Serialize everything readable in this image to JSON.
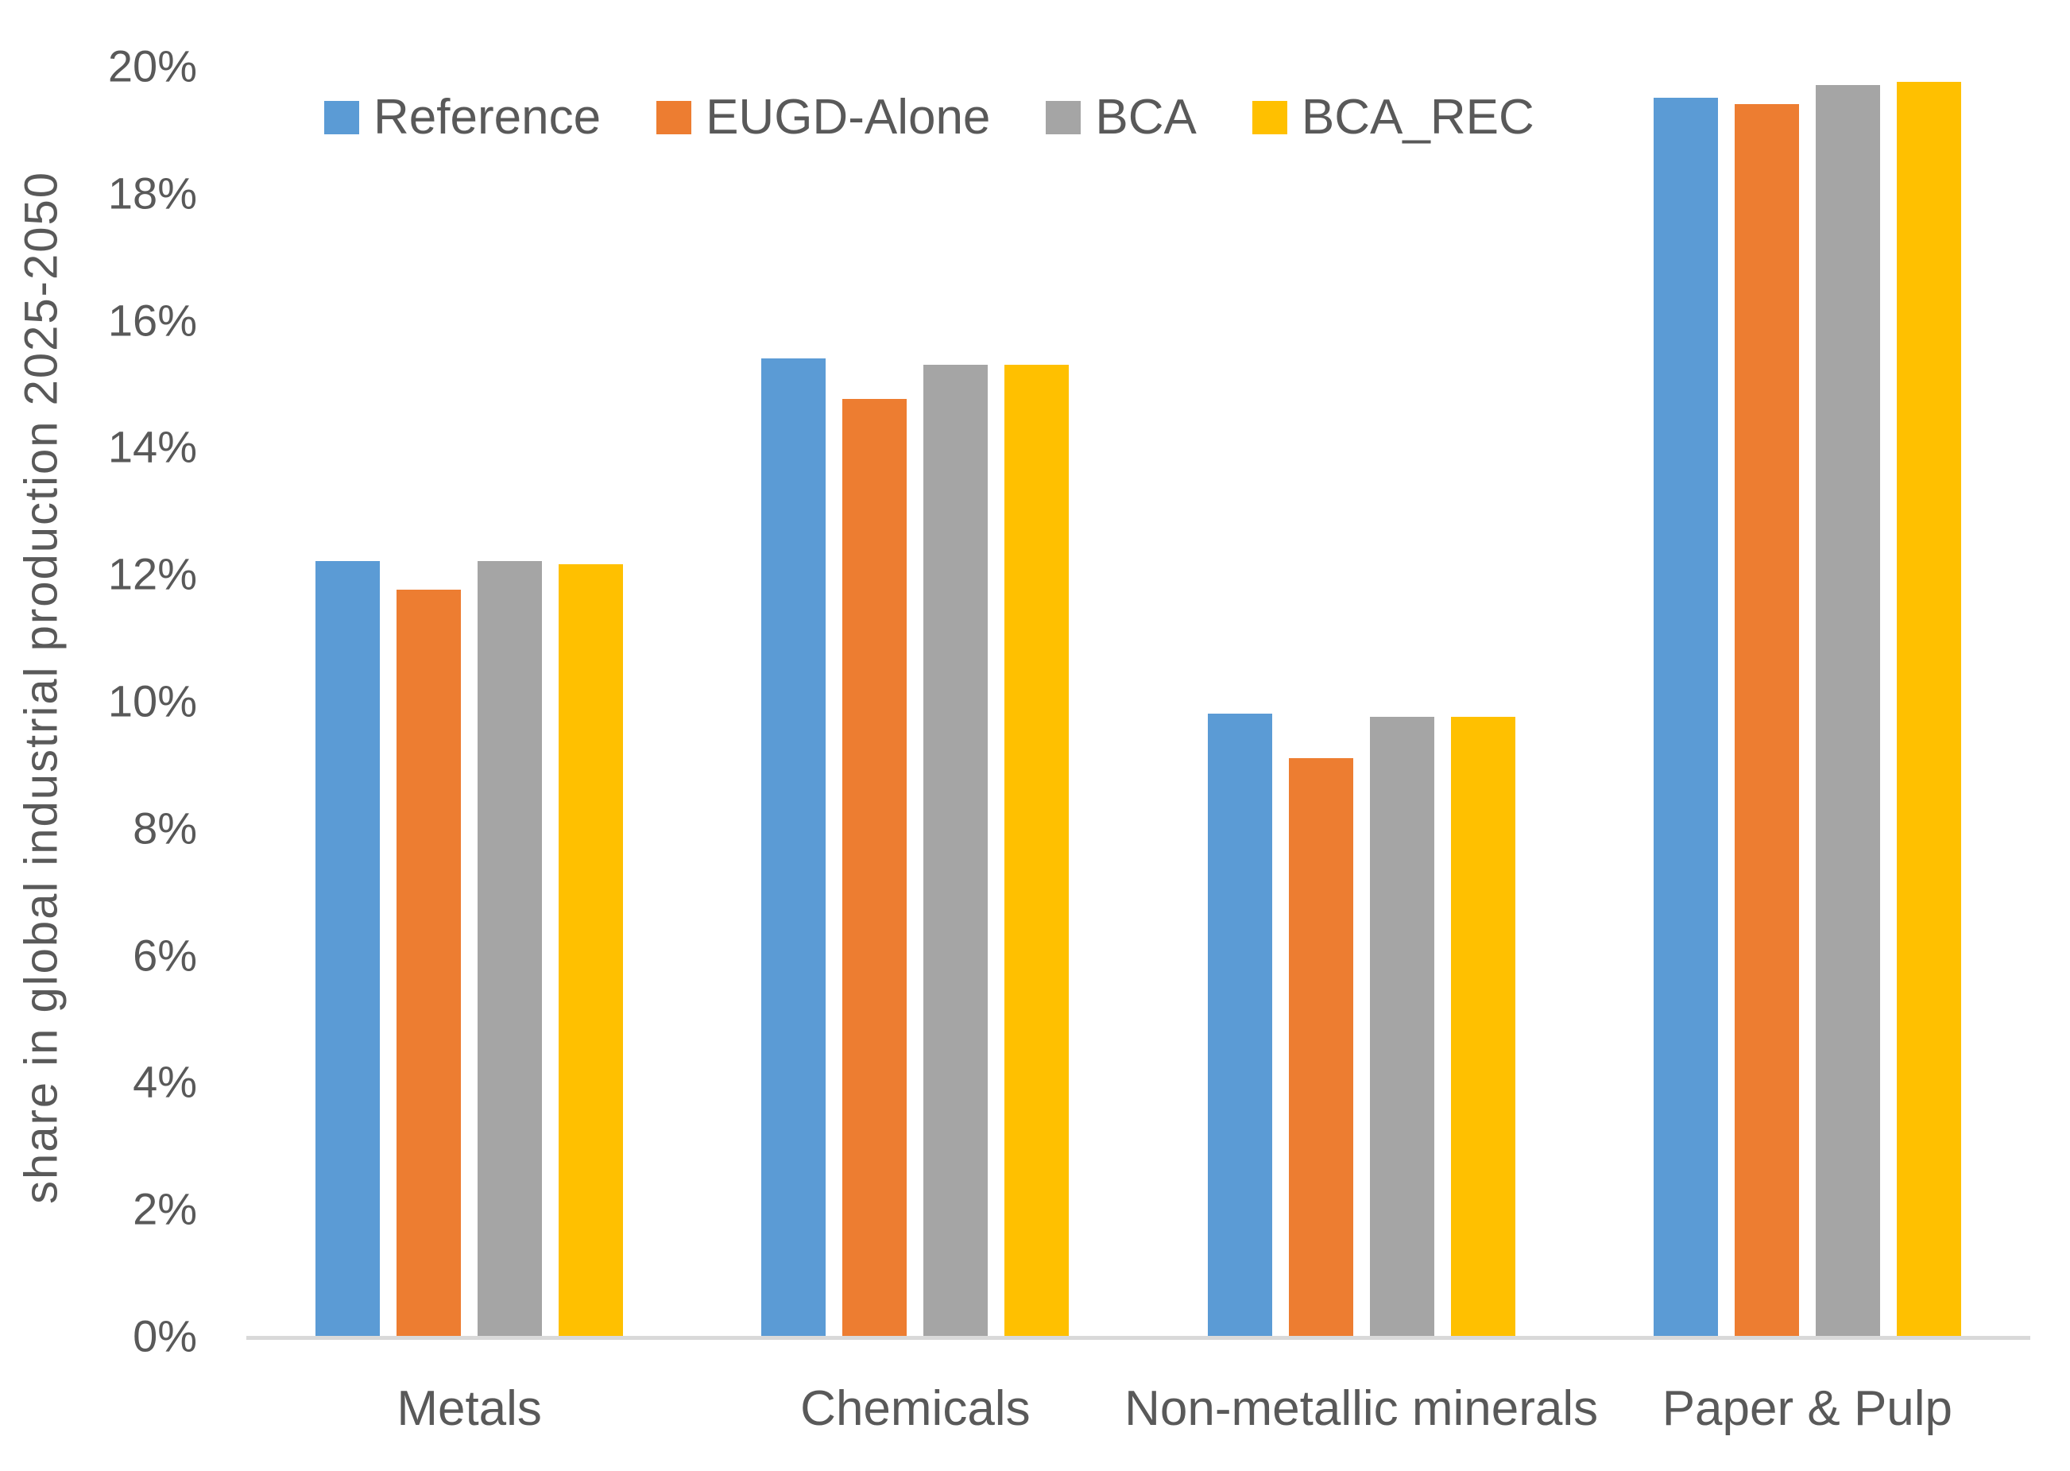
{
  "chart_data": {
    "type": "bar",
    "title": "",
    "xlabel": "",
    "ylabel": "share in global industrial production 2025-2050",
    "categories": [
      "Metals",
      "Chemicals",
      "Non-metallic minerals",
      "Paper & Pulp"
    ],
    "series": [
      {
        "name": "Reference",
        "color": "#5B9BD5",
        "values": [
          12.2,
          15.4,
          9.8,
          19.5
        ]
      },
      {
        "name": "EUGD-Alone",
        "color": "#ED7D31",
        "values": [
          11.75,
          14.75,
          9.1,
          19.4
        ]
      },
      {
        "name": "BCA",
        "color": "#A5A5A5",
        "values": [
          12.2,
          15.3,
          9.75,
          19.7
        ]
      },
      {
        "name": "BCA_REC",
        "color": "#FFC000",
        "values": [
          12.15,
          15.3,
          9.75,
          19.75
        ]
      }
    ],
    "ylim": [
      0,
      20
    ],
    "y_tick_step": 2,
    "y_ticks": [
      "0%",
      "2%",
      "4%",
      "6%",
      "8%",
      "10%",
      "12%",
      "14%",
      "16%",
      "18%",
      "20%"
    ],
    "grid": false,
    "legend_position": "top"
  },
  "colors": {
    "text": "#595959",
    "axis_line": "#D9D9D9",
    "background": "#FFFFFF"
  }
}
